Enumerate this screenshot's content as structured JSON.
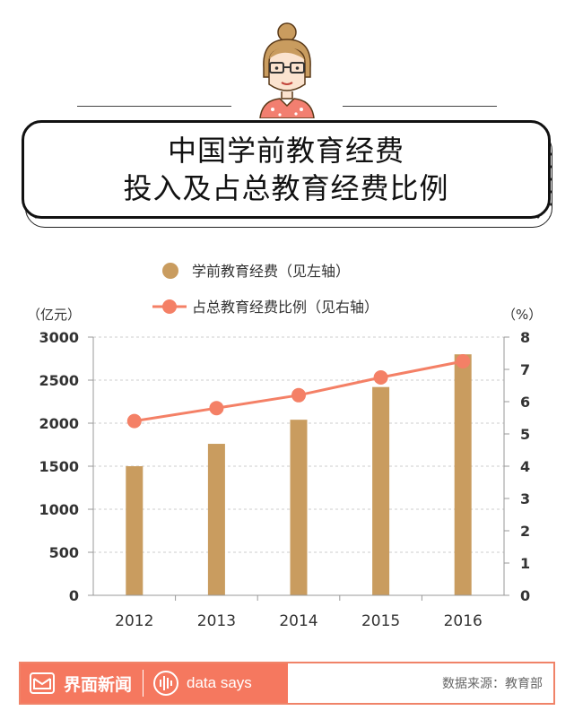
{
  "header": {
    "title_line1": "中国学前教育经费",
    "title_line2": "投入及占总教育经费比例"
  },
  "colors": {
    "bar": "#c99c5f",
    "line": "#f48066",
    "brand": "#f5785f",
    "axis_text": "#333333",
    "grid": "#cccccc"
  },
  "chart_data": {
    "type": "bar+line",
    "categories": [
      "2012",
      "2013",
      "2014",
      "2015",
      "2016"
    ],
    "series": [
      {
        "name": "学前教育经费（见左轴）",
        "type": "bar",
        "axis": "left",
        "values": [
          1500,
          1760,
          2040,
          2420,
          2800
        ]
      },
      {
        "name": "占总教育经费比例（见右轴）",
        "type": "line",
        "axis": "right",
        "values": [
          5.4,
          5.8,
          6.2,
          6.75,
          7.25
        ]
      }
    ],
    "left_axis": {
      "label": "（亿元）",
      "ylim": [
        0,
        3000
      ],
      "ticks": [
        "0",
        "500",
        "1000",
        "1500",
        "2000",
        "2500",
        "3000"
      ]
    },
    "right_axis": {
      "label": "（%）",
      "ylim": [
        0,
        8
      ],
      "ticks": [
        "0",
        "1",
        "2",
        "3",
        "4",
        "5",
        "6",
        "7",
        "8"
      ]
    },
    "grid": true,
    "legend_position": "top-center"
  },
  "footer": {
    "brand_name": "界面新闻",
    "data_says": "data says",
    "source": "数据来源：教育部"
  }
}
